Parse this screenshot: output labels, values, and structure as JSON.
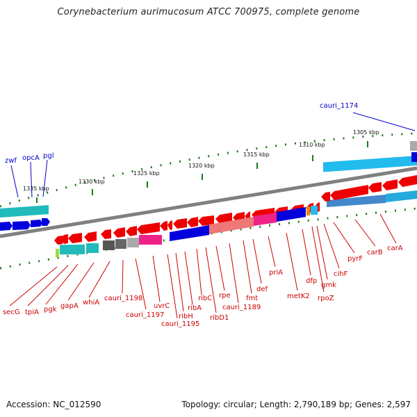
{
  "title": "Corynebacterium aurimucosum ATCC 700975, complete genome",
  "footer": {
    "accession": "Accession: NC_012590",
    "summary": "Topology: circular; Length: 2,790,189 bp; Genes: 2,597"
  },
  "colors": {
    "forward_label": "#0000cc",
    "reverse_label": "#cc0000",
    "backbone": "#808080",
    "dots": "#1a7a1a"
  },
  "ticks": [
    "1335 kbp",
    "1330 kbp",
    "1325 kbp",
    "1320 kbp",
    "1315 kbp",
    "1310 kbp",
    "1305 kbp"
  ],
  "forward_genes": [
    "zwf",
    "opcA",
    "pgl",
    "cauri_1174"
  ],
  "reverse_genes": [
    "secG",
    "tpiA",
    "pgk",
    "gapA",
    "whiA",
    "cauri_1198",
    "cauri_1197",
    "uvrC",
    "cauri_1195",
    "ribH",
    "ribA",
    "ribC",
    "ribD1",
    "rpe",
    "cauri_1189",
    "fmt",
    "def",
    "priA",
    "metK2",
    "dfp",
    "rpoZ",
    "gmk",
    "cihF",
    "pyrF",
    "carB",
    "carA"
  ]
}
